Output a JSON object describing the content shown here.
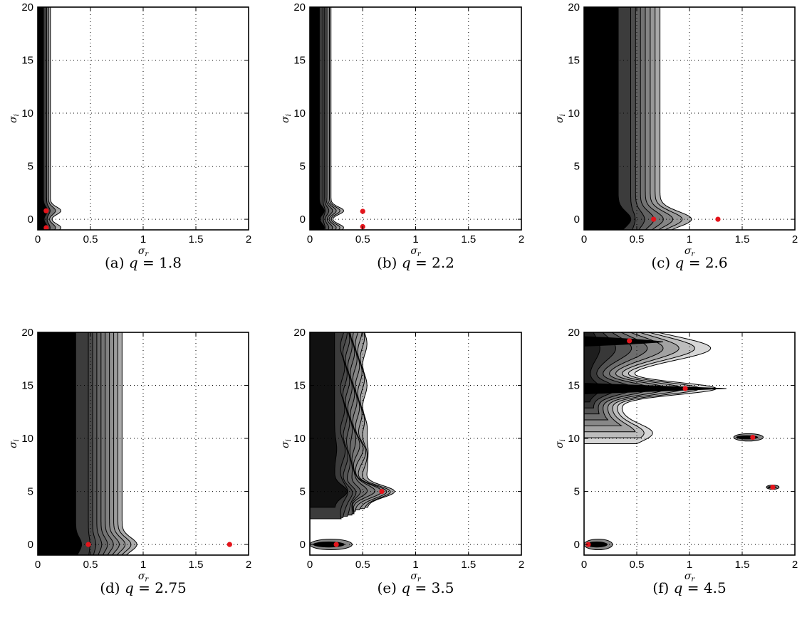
{
  "figure": {
    "panels": [
      {
        "id": "a",
        "caption_prefix": "(a)",
        "caption_var": "q",
        "caption_value": "= 1.8"
      },
      {
        "id": "b",
        "caption_prefix": "(b)",
        "caption_var": "q",
        "caption_value": "= 2.2"
      },
      {
        "id": "c",
        "caption_prefix": "(c)",
        "caption_var": "q",
        "caption_value": "= 2.6"
      },
      {
        "id": "d",
        "caption_prefix": "(d)",
        "caption_var": "q",
        "caption_value": "= 2.75"
      },
      {
        "id": "e",
        "caption_prefix": "(e)",
        "caption_var": "q",
        "caption_value": "= 3.5"
      },
      {
        "id": "f",
        "caption_prefix": "(f)",
        "caption_var": "q",
        "caption_value": "= 4.5"
      }
    ]
  },
  "chart_data": [
    {
      "type": "contour",
      "panel": "(a) q = 1.8",
      "xlabel": "σ_r",
      "ylabel": "σ_i",
      "xlim": [
        0,
        2
      ],
      "ylim": [
        -1,
        20
      ],
      "xticks": [
        "0",
        "0.5",
        "1",
        "1.5",
        "2"
      ],
      "yticks": [
        "0",
        "5",
        "10",
        "15",
        "20"
      ],
      "grid": true,
      "shape": "edge_band",
      "edge_width": 0.12,
      "n_levels": 3,
      "left_fill": "#000000",
      "bumps": [
        {
          "y": 0.8,
          "ext": 0.1,
          "w": 0.5
        },
        {
          "y": -0.8,
          "ext": 0.1,
          "w": 0.5
        }
      ],
      "dots": [
        [
          0.08,
          0.8
        ],
        [
          0.08,
          -0.8
        ]
      ],
      "colors": {
        "dot": "#e4141b"
      }
    },
    {
      "type": "contour",
      "panel": "(b) q = 2.2",
      "xlabel": "σ_r",
      "ylabel": "σ_i",
      "xlim": [
        0,
        2
      ],
      "ylim": [
        -1,
        20
      ],
      "xticks": [
        "0",
        "0.5",
        "1",
        "1.5",
        "2"
      ],
      "yticks": [
        "0",
        "5",
        "10",
        "15",
        "20"
      ],
      "grid": true,
      "shape": "edge_band",
      "edge_width": 0.2,
      "n_levels": 6,
      "left_fill": "#000000",
      "bumps": [
        {
          "y": 0.8,
          "ext": 0.12,
          "w": 0.5
        },
        {
          "y": -0.8,
          "ext": 0.12,
          "w": 0.5
        }
      ],
      "dots": [
        [
          0.5,
          0.75
        ],
        [
          0.5,
          -0.7
        ]
      ],
      "colors": {
        "dot": "#e4141b"
      }
    },
    {
      "type": "contour",
      "panel": "(c) q = 2.6",
      "xlabel": "σ_r",
      "ylabel": "σ_i",
      "xlim": [
        0,
        2
      ],
      "ylim": [
        -1,
        20
      ],
      "xticks": [
        "0",
        "0.5",
        "1",
        "1.5",
        "2"
      ],
      "yticks": [
        "0",
        "5",
        "10",
        "15",
        "20"
      ],
      "grid": true,
      "shape": "edge_band",
      "edge_width": 0.72,
      "n_levels": 7,
      "left_fill": "#000000",
      "bumps": [
        {
          "y": 0.0,
          "ext": 0.3,
          "w": 1.0
        }
      ],
      "dots": [
        [
          0.66,
          0.0
        ],
        [
          1.27,
          0.0
        ]
      ],
      "colors": {
        "dot": "#e4141b"
      }
    },
    {
      "type": "contour",
      "panel": "(d) q = 2.75",
      "xlabel": "σ_r",
      "ylabel": "σ_i",
      "xlim": [
        0,
        2
      ],
      "ylim": [
        -1,
        20
      ],
      "xticks": [
        "0",
        "0.5",
        "1",
        "1.5",
        "2"
      ],
      "yticks": [
        "0",
        "5",
        "10",
        "15",
        "20"
      ],
      "grid": true,
      "shape": "edge_band",
      "edge_width": 0.8,
      "n_levels": 9,
      "left_fill": "#000000",
      "bumps": [
        {
          "y": 0.0,
          "ext": 0.14,
          "w": 0.9
        }
      ],
      "dots": [
        [
          0.48,
          0.0
        ],
        [
          1.82,
          0.0
        ]
      ],
      "colors": {
        "dot": "#e4141b"
      }
    },
    {
      "type": "contour",
      "panel": "(e) q = 3.5",
      "xlabel": "σ_r",
      "ylabel": "σ_i",
      "xlim": [
        0,
        2
      ],
      "ylim": [
        -1,
        20
      ],
      "xticks": [
        "0",
        "0.5",
        "1",
        "1.5",
        "2"
      ],
      "yticks": [
        "0",
        "5",
        "10",
        "15",
        "20"
      ],
      "grid": true,
      "shape": "edge_band",
      "edge_width": 0.52,
      "n_levels": 10,
      "left_fill": "#111111",
      "bottom_cut": 3.5,
      "bumps": [
        {
          "y": 5.0,
          "ext": 0.3,
          "w": 0.8
        },
        {
          "y": 9.0,
          "ext": 0.05,
          "w": 1.2
        }
      ],
      "lobes": [
        {
          "y": 0.0,
          "xmax": 0.4,
          "h": 0.5
        }
      ],
      "dots": [
        [
          0.25,
          0.0
        ],
        [
          0.68,
          5.0
        ]
      ],
      "colors": {
        "dot": "#e4141b"
      }
    },
    {
      "type": "contour",
      "panel": "(f) q = 4.5",
      "xlabel": "σ_r",
      "ylabel": "σ_i",
      "xlim": [
        0,
        2
      ],
      "ylim": [
        -1,
        20
      ],
      "xticks": [
        "0",
        "0.5",
        "1",
        "1.5",
        "2"
      ],
      "yticks": [
        "0",
        "5",
        "10",
        "15",
        "20"
      ],
      "grid": true,
      "shape": "upper_region",
      "n_levels": 8,
      "lobes": [
        {
          "y": 0.0,
          "xmax": 0.27,
          "h": 0.5
        },
        {
          "y": 10.1,
          "xmax": 1.7,
          "xmin": 1.42,
          "h": 0.35
        },
        {
          "y": 5.4,
          "xmax": 1.85,
          "xmin": 1.73,
          "h": 0.2
        }
      ],
      "dots": [
        [
          0.04,
          0.0
        ],
        [
          0.43,
          19.2
        ],
        [
          0.96,
          14.7
        ],
        [
          1.6,
          10.1
        ],
        [
          1.79,
          5.4
        ]
      ],
      "colors": {
        "dot": "#e4141b"
      }
    }
  ]
}
